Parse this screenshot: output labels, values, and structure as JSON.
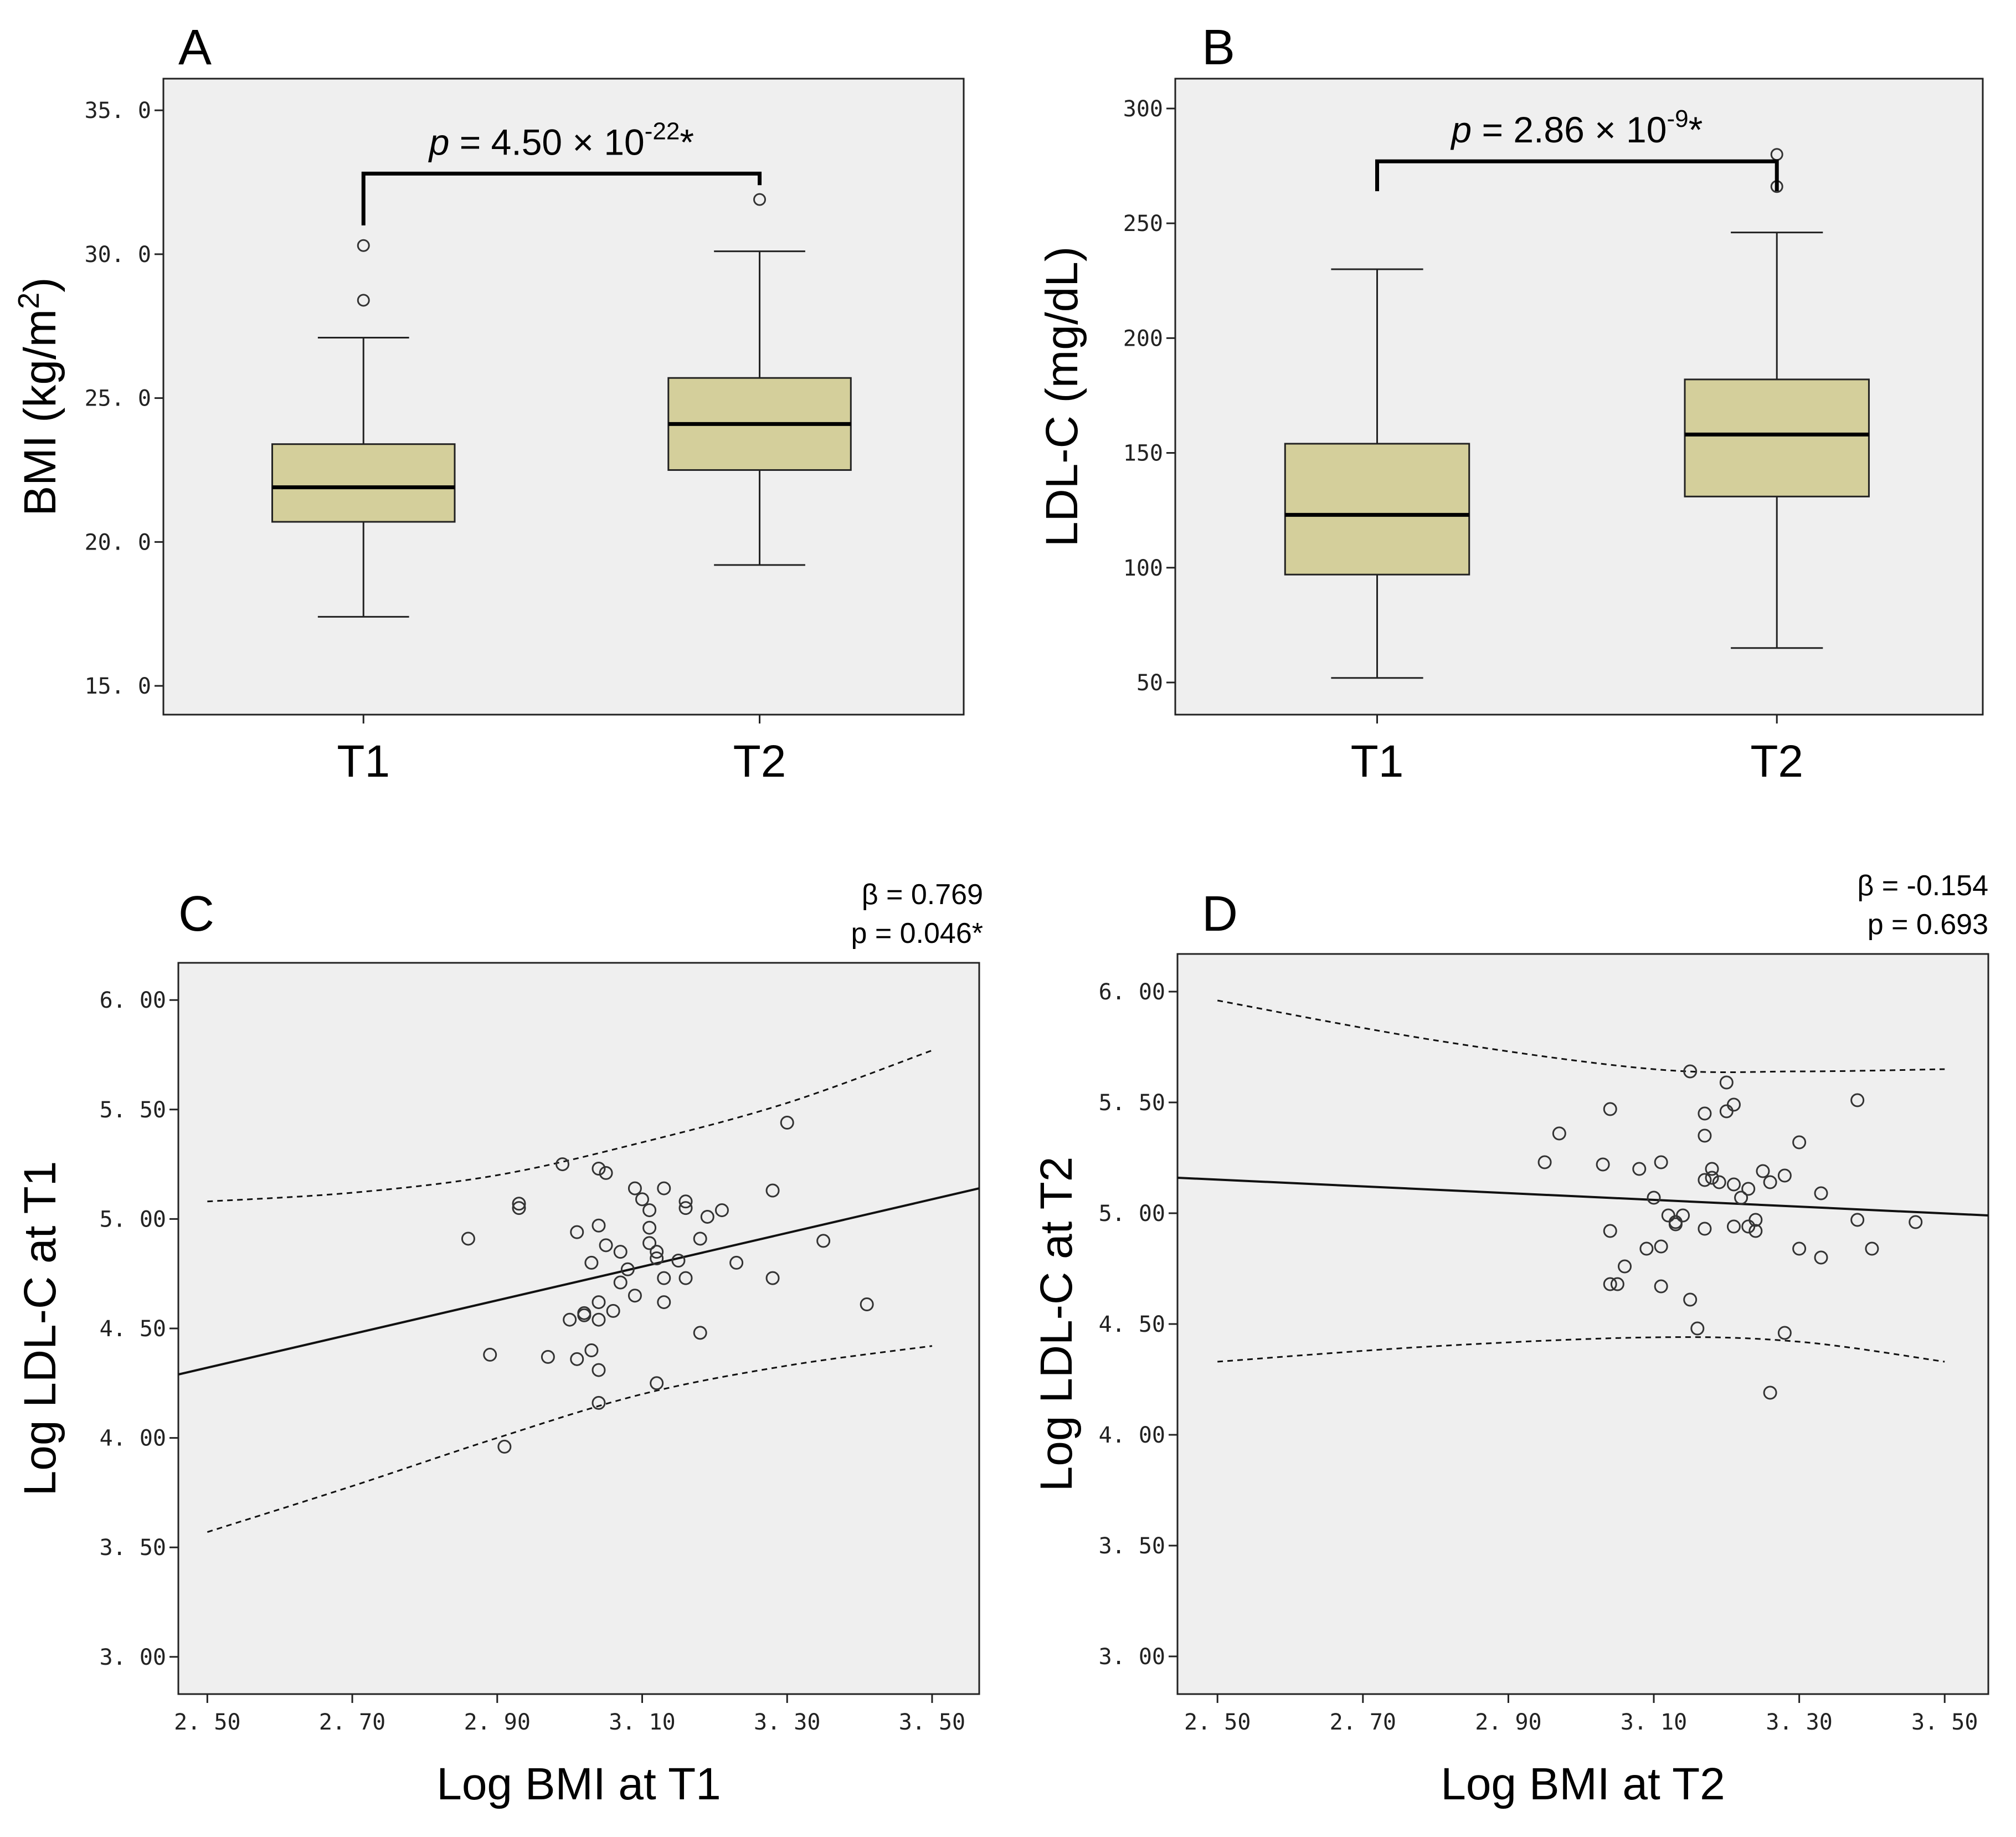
{
  "chart_data": [
    {
      "panel": "A",
      "type": "box",
      "ylabel_main": "BMI (kg/m",
      "ylabel_sup": "2",
      "ylabel_end": ")",
      "ylim": [
        14,
        36.1
      ],
      "yticks": [
        15,
        20,
        25,
        30,
        35
      ],
      "ytick_labels": [
        "15. 0",
        "20. 0",
        "25. 0",
        "30. 0",
        "35. 0"
      ],
      "categories": [
        "T1",
        "T2"
      ],
      "boxes": [
        {
          "category": "T1",
          "whisker_low": 17.4,
          "q1": 20.7,
          "median": 21.9,
          "q3": 23.4,
          "whisker_high": 27.1,
          "outliers": [
            28.4,
            30.3
          ]
        },
        {
          "category": "T2",
          "whisker_low": 19.2,
          "q1": 22.5,
          "median": 24.1,
          "q3": 25.7,
          "whisker_high": 30.1,
          "outliers": [
            31.9
          ]
        }
      ],
      "significance": {
        "p_label": "p",
        "eq": " = 4.50 × 10",
        "exponent": "-22",
        "star": "*",
        "bracket_y": 32.8,
        "bracket_drop_left": 31.0,
        "bracket_drop_right": 32.4
      }
    },
    {
      "panel": "B",
      "type": "box",
      "ylabel_main": "LDL-C (mg/dL)",
      "ylabel_sup": "",
      "ylabel_end": "",
      "ylim": [
        36,
        313
      ],
      "yticks": [
        50,
        100,
        150,
        200,
        250,
        300
      ],
      "ytick_labels": [
        "50",
        "100",
        "150",
        "200",
        "250",
        "300"
      ],
      "categories": [
        "T1",
        "T2"
      ],
      "boxes": [
        {
          "category": "T1",
          "whisker_low": 52,
          "q1": 97,
          "median": 123,
          "q3": 154,
          "whisker_high": 230,
          "outliers": []
        },
        {
          "category": "T2",
          "whisker_low": 65,
          "q1": 131,
          "median": 158,
          "q3": 182,
          "whisker_high": 246,
          "outliers": [
            266,
            280
          ]
        }
      ],
      "significance": {
        "p_label": "p",
        "eq": " = 2.86 × 10",
        "exponent": "-9",
        "star": "*",
        "bracket_y": 277,
        "bracket_drop_left": 264,
        "bracket_drop_right": 264
      }
    },
    {
      "panel": "C",
      "type": "scatter",
      "xlabel": "Log BMI at T1",
      "ylabel": "Log LDL-C at T1",
      "xlim": [
        2.46,
        3.565
      ],
      "ylim": [
        2.83,
        6.17
      ],
      "xticks": [
        2.5,
        2.7,
        2.9,
        3.1,
        3.3,
        3.5
      ],
      "xtick_labels": [
        "2. 50",
        "2. 70",
        "2. 90",
        "3. 10",
        "3. 30",
        "3. 50"
      ],
      "yticks": [
        3,
        3.5,
        4,
        4.5,
        5,
        5.5,
        6
      ],
      "ytick_labels": [
        "3. 00",
        "3. 50",
        "4. 00",
        "4. 50",
        "5. 00",
        "5. 50",
        "6. 00"
      ],
      "stat_beta": "β = 0.769",
      "stat_p": "p = 0.046*",
      "fit_line": [
        [
          2.46,
          4.29
        ],
        [
          3.565,
          5.14
        ]
      ],
      "ci_upper": [
        [
          2.5,
          5.08
        ],
        [
          2.7,
          5.12
        ],
        [
          2.9,
          5.2
        ],
        [
          3.1,
          5.35
        ],
        [
          3.3,
          5.53
        ],
        [
          3.5,
          5.77
        ]
      ],
      "ci_lower": [
        [
          2.5,
          3.57
        ],
        [
          2.7,
          3.78
        ],
        [
          2.9,
          4.0
        ],
        [
          3.1,
          4.2
        ],
        [
          3.3,
          4.33
        ],
        [
          3.5,
          4.42
        ]
      ],
      "points": [
        [
          2.86,
          4.91
        ],
        [
          2.89,
          4.38
        ],
        [
          2.91,
          3.96
        ],
        [
          2.93,
          5.07
        ],
        [
          2.93,
          5.05
        ],
        [
          2.97,
          4.37
        ],
        [
          2.99,
          5.25
        ],
        [
          3.0,
          4.54
        ],
        [
          3.01,
          4.94
        ],
        [
          3.01,
          4.36
        ],
        [
          3.02,
          4.57
        ],
        [
          3.02,
          4.56
        ],
        [
          3.03,
          4.8
        ],
        [
          3.03,
          4.4
        ],
        [
          3.04,
          5.23
        ],
        [
          3.04,
          4.97
        ],
        [
          3.04,
          4.62
        ],
        [
          3.04,
          4.54
        ],
        [
          3.04,
          4.31
        ],
        [
          3.04,
          4.16
        ],
        [
          3.05,
          5.21
        ],
        [
          3.05,
          4.88
        ],
        [
          3.06,
          4.58
        ],
        [
          3.07,
          4.85
        ],
        [
          3.07,
          4.71
        ],
        [
          3.08,
          4.77
        ],
        [
          3.09,
          5.14
        ],
        [
          3.09,
          4.65
        ],
        [
          3.1,
          5.09
        ],
        [
          3.11,
          5.04
        ],
        [
          3.11,
          4.96
        ],
        [
          3.11,
          4.89
        ],
        [
          3.12,
          4.25
        ],
        [
          3.12,
          4.85
        ],
        [
          3.12,
          4.82
        ],
        [
          3.13,
          5.14
        ],
        [
          3.13,
          4.73
        ],
        [
          3.13,
          4.62
        ],
        [
          3.15,
          4.81
        ],
        [
          3.16,
          5.08
        ],
        [
          3.16,
          5.05
        ],
        [
          3.16,
          4.73
        ],
        [
          3.18,
          4.48
        ],
        [
          3.18,
          4.91
        ],
        [
          3.19,
          5.01
        ],
        [
          3.21,
          5.04
        ],
        [
          3.23,
          4.8
        ],
        [
          3.28,
          5.13
        ],
        [
          3.28,
          4.73
        ],
        [
          3.3,
          5.44
        ],
        [
          3.35,
          4.9
        ],
        [
          3.41,
          4.61
        ]
      ]
    },
    {
      "panel": "D",
      "type": "scatter",
      "xlabel": "Log BMI at T2",
      "ylabel": "Log LDL-C at T2",
      "xlim": [
        2.445,
        3.56
      ],
      "ylim": [
        2.83,
        6.17
      ],
      "xticks": [
        2.5,
        2.7,
        2.9,
        3.1,
        3.3,
        3.5
      ],
      "xtick_labels": [
        "2. 50",
        "2. 70",
        "2. 90",
        "3. 10",
        "3. 30",
        "3. 50"
      ],
      "yticks": [
        3,
        3.5,
        4,
        4.5,
        5,
        5.5,
        6
      ],
      "ytick_labels": [
        "3. 00",
        "3. 50",
        "4. 00",
        "4. 50",
        "5. 00",
        "5. 50",
        "6. 00"
      ],
      "stat_beta": "β = -0.154",
      "stat_p": "p = 0.693",
      "fit_line": [
        [
          2.445,
          5.16
        ],
        [
          3.56,
          4.99
        ]
      ],
      "ci_upper": [
        [
          2.5,
          5.96
        ],
        [
          2.8,
          5.78
        ],
        [
          3.1,
          5.65
        ],
        [
          3.3,
          5.64
        ],
        [
          3.5,
          5.65
        ]
      ],
      "ci_lower": [
        [
          2.5,
          4.33
        ],
        [
          2.8,
          4.4
        ],
        [
          3.1,
          4.44
        ],
        [
          3.3,
          4.42
        ],
        [
          3.5,
          4.33
        ]
      ],
      "points": [
        [
          2.95,
          5.23
        ],
        [
          2.97,
          5.36
        ],
        [
          3.03,
          5.22
        ],
        [
          3.04,
          5.47
        ],
        [
          3.04,
          4.92
        ],
        [
          3.04,
          4.68
        ],
        [
          3.05,
          4.68
        ],
        [
          3.06,
          4.76
        ],
        [
          3.08,
          5.2
        ],
        [
          3.09,
          4.84
        ],
        [
          3.1,
          5.07
        ],
        [
          3.11,
          5.23
        ],
        [
          3.11,
          4.85
        ],
        [
          3.11,
          4.67
        ],
        [
          3.12,
          4.99
        ],
        [
          3.13,
          4.96
        ],
        [
          3.13,
          4.95
        ],
        [
          3.14,
          4.99
        ],
        [
          3.15,
          5.64
        ],
        [
          3.15,
          4.61
        ],
        [
          3.16,
          4.48
        ],
        [
          3.17,
          5.35
        ],
        [
          3.17,
          5.15
        ],
        [
          3.17,
          5.45
        ],
        [
          3.17,
          4.93
        ],
        [
          3.18,
          5.16
        ],
        [
          3.18,
          5.2
        ],
        [
          3.19,
          5.14
        ],
        [
          3.2,
          5.46
        ],
        [
          3.2,
          5.59
        ],
        [
          3.21,
          5.49
        ],
        [
          3.21,
          5.13
        ],
        [
          3.21,
          4.94
        ],
        [
          3.22,
          5.07
        ],
        [
          3.23,
          5.11
        ],
        [
          3.23,
          4.94
        ],
        [
          3.24,
          4.92
        ],
        [
          3.24,
          4.97
        ],
        [
          3.25,
          5.19
        ],
        [
          3.26,
          5.14
        ],
        [
          3.26,
          4.19
        ],
        [
          3.28,
          4.46
        ],
        [
          3.28,
          5.17
        ],
        [
          3.3,
          5.32
        ],
        [
          3.3,
          4.84
        ],
        [
          3.33,
          5.09
        ],
        [
          3.33,
          4.8
        ],
        [
          3.38,
          4.97
        ],
        [
          3.38,
          5.51
        ],
        [
          3.4,
          4.84
        ],
        [
          3.46,
          4.96
        ]
      ]
    }
  ]
}
